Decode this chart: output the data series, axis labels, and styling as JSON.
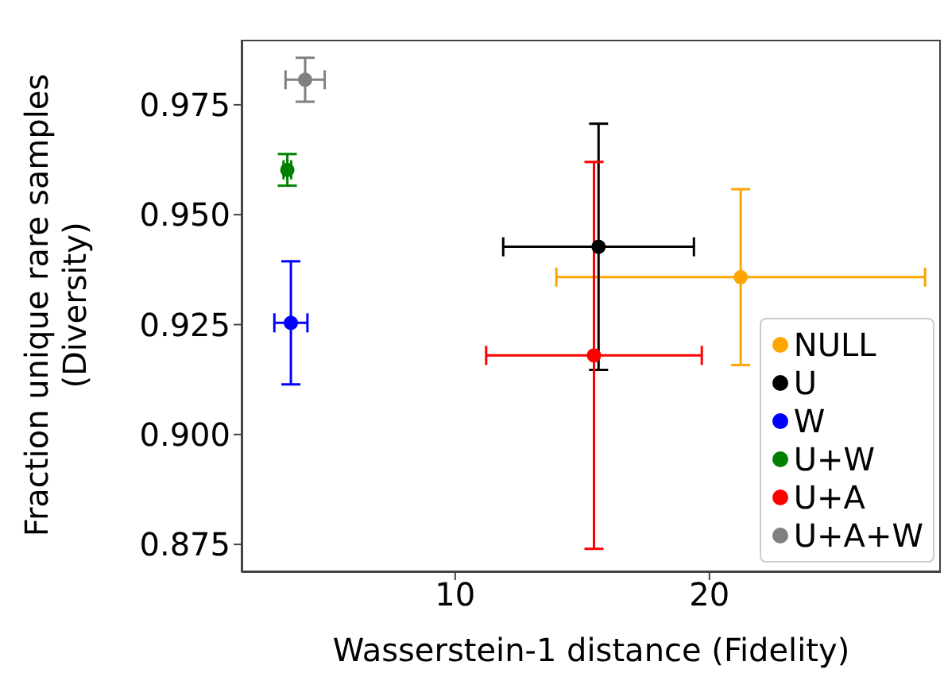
{
  "chart_data": {
    "type": "scatter",
    "xlabel": "Wasserstein-1 distance (Fidelity)",
    "ylabel": "Fraction unique rare samples\n(Diversity)",
    "xlim": [
      1.6,
      29.1
    ],
    "ylim": [
      0.8687,
      0.9898
    ],
    "xticks": [
      10,
      20
    ],
    "yticks": [
      0.875,
      {
        "value": 0.9,
        "label": "0.900"
      },
      0.925,
      {
        "value": 0.95,
        "label": "0.950"
      },
      0.975
    ],
    "grid": false,
    "legend": "bottom right",
    "marker": "circle",
    "series": [
      {
        "name": "NULL",
        "color": "#ffa500",
        "x": [
          21.23
        ],
        "values": [
          0.9358
        ],
        "errors": [
          0.02
        ],
        "xerrors": [
          7.25
        ]
      },
      {
        "name": "U",
        "color": "#000000",
        "x": [
          15.64
        ],
        "values": [
          0.9427
        ],
        "errors": [
          0.028
        ],
        "xerrors": [
          3.75
        ]
      },
      {
        "name": "W",
        "color": "#0000ff",
        "x": [
          3.54
        ],
        "values": [
          0.9254
        ],
        "errors": [
          0.014
        ],
        "xerrors": [
          0.65
        ]
      },
      {
        "name": "U+W",
        "color": "#008000",
        "x": [
          3.4
        ],
        "values": [
          0.9602
        ],
        "errors": [
          0.0036
        ],
        "xerrors": [
          0.15
        ]
      },
      {
        "name": "U+A",
        "color": "#ff0000",
        "x": [
          15.46
        ],
        "values": [
          0.918
        ],
        "errors": [
          0.044
        ],
        "xerrors": [
          4.24
        ]
      },
      {
        "name": "U+A+W",
        "color": "#808080",
        "x": [
          4.1
        ],
        "values": [
          0.9807
        ],
        "errors": [
          0.005
        ],
        "xerrors": [
          0.77
        ]
      }
    ]
  }
}
